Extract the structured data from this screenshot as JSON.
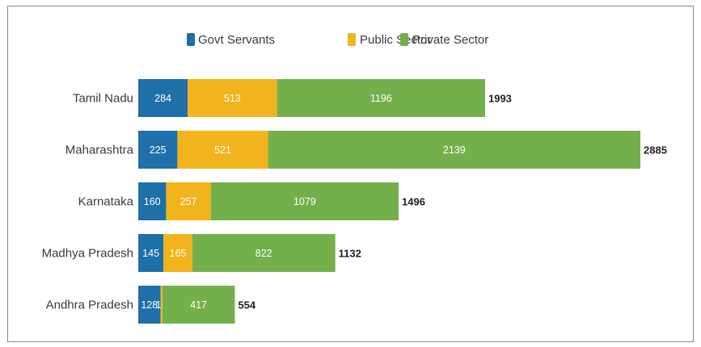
{
  "chart_data": {
    "type": "bar",
    "orientation": "horizontal",
    "stacked": true,
    "title": "",
    "xlabel": "",
    "ylabel": "",
    "grid": false,
    "legend_position": "top",
    "categories": [
      "Tamil Nadu",
      "Maharashtra",
      "Karnataka",
      "Madhya Pradesh",
      "Andhra Pradesh"
    ],
    "series": [
      {
        "name": "Govt Servants",
        "color": "#1f6fa8",
        "values": [
          284,
          225,
          160,
          145,
          128
        ]
      },
      {
        "name": "Public Sector",
        "color": "#f2b41c",
        "values": [
          513,
          521,
          257,
          165,
          10
        ]
      },
      {
        "name": "Private Sector",
        "color": "#73b04c",
        "values": [
          1196,
          2139,
          1079,
          822,
          417
        ]
      }
    ],
    "segment_labels": [
      [
        "284",
        "513",
        "1196"
      ],
      [
        "225",
        "521",
        "2139"
      ],
      [
        "160",
        "257",
        "1079"
      ],
      [
        "145",
        "165",
        "822"
      ],
      [
        "128",
        "10",
        "417"
      ]
    ],
    "totals": [
      "1993",
      "2885",
      "1496",
      "1132",
      "554"
    ],
    "xlim": [
      0,
      2885
    ]
  }
}
